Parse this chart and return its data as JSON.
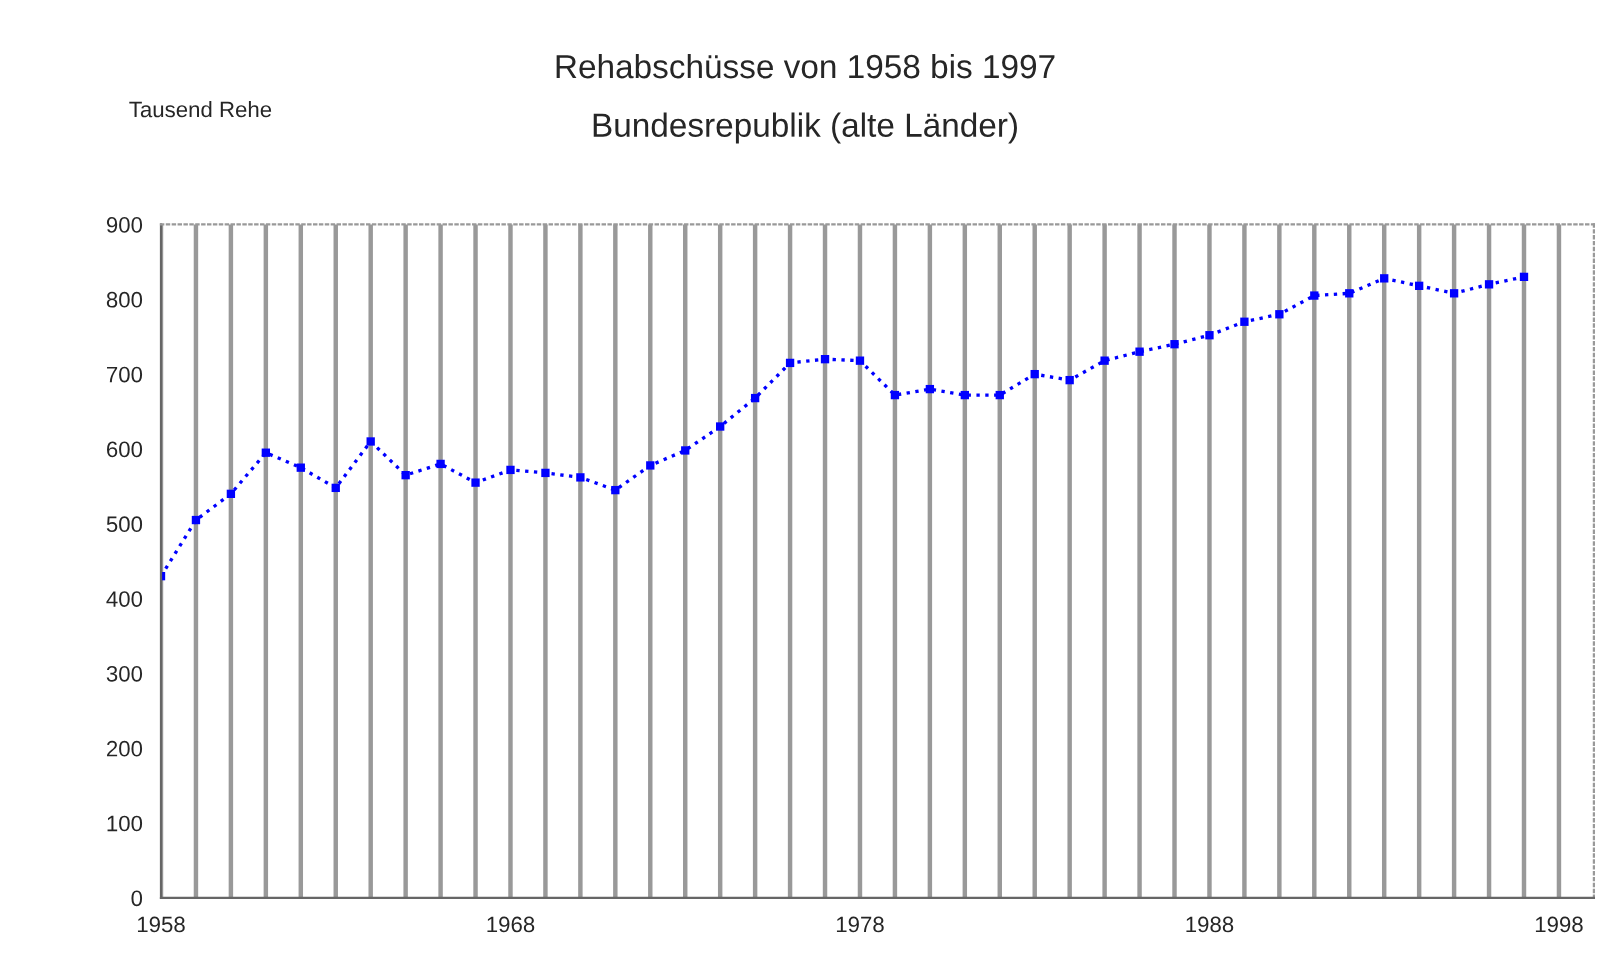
{
  "chart_data": {
    "type": "line",
    "title": "Rehabschüsse von 1958 bis 1997",
    "subtitle": "Bundesrepublik (alte Länder)",
    "ylabel": "Tausend Rehe",
    "x": [
      1958,
      1959,
      1960,
      1961,
      1962,
      1963,
      1964,
      1965,
      1966,
      1967,
      1968,
      1969,
      1970,
      1971,
      1972,
      1973,
      1974,
      1975,
      1976,
      1977,
      1978,
      1979,
      1980,
      1981,
      1982,
      1983,
      1984,
      1985,
      1986,
      1987,
      1988,
      1989,
      1990,
      1991,
      1992,
      1993,
      1994,
      1995,
      1996,
      1997
    ],
    "series": [
      {
        "color": "#0000ff",
        "values": [
          430,
          505,
          540,
          595,
          575,
          548,
          610,
          565,
          580,
          555,
          572,
          568,
          562,
          545,
          578,
          598,
          630,
          668,
          715,
          720,
          718,
          672,
          680,
          672,
          672,
          700,
          692,
          718,
          730,
          740,
          752,
          770,
          780,
          805,
          808,
          828,
          818,
          808,
          820,
          830
        ]
      }
    ],
    "xlim": [
      1958,
      1999
    ],
    "xticks": [
      1958,
      {
        "value": 1959,
        "label": null
      },
      {
        "value": 1960,
        "label": null
      },
      {
        "value": 1961,
        "label": null
      },
      {
        "value": 1962,
        "label": null
      },
      {
        "value": 1963,
        "label": null
      },
      {
        "value": 1964,
        "label": null
      },
      {
        "value": 1965,
        "label": null
      },
      {
        "value": 1966,
        "label": null
      },
      {
        "value": 1967,
        "label": null
      },
      1968,
      {
        "value": 1969,
        "label": null
      },
      {
        "value": 1970,
        "label": null
      },
      {
        "value": 1971,
        "label": null
      },
      {
        "value": 1972,
        "label": null
      },
      {
        "value": 1973,
        "label": null
      },
      {
        "value": 1974,
        "label": null
      },
      {
        "value": 1975,
        "label": null
      },
      {
        "value": 1976,
        "label": null
      },
      {
        "value": 1977,
        "label": null
      },
      1978,
      {
        "value": 1979,
        "label": null
      },
      {
        "value": 1980,
        "label": null
      },
      {
        "value": 1981,
        "label": null
      },
      {
        "value": 1982,
        "label": null
      },
      {
        "value": 1983,
        "label": null
      },
      {
        "value": 1984,
        "label": null
      },
      {
        "value": 1985,
        "label": null
      },
      {
        "value": 1986,
        "label": null
      },
      {
        "value": 1987,
        "label": null
      },
      1988,
      {
        "value": 1989,
        "label": null
      },
      {
        "value": 1990,
        "label": null
      },
      {
        "value": 1991,
        "label": null
      },
      {
        "value": 1992,
        "label": null
      },
      {
        "value": 1993,
        "label": null
      },
      {
        "value": 1994,
        "label": null
      },
      {
        "value": 1995,
        "label": null
      },
      {
        "value": 1996,
        "label": null
      },
      {
        "value": 1997,
        "label": null
      },
      1998
    ],
    "ylim": [
      0,
      900
    ],
    "yticks": [
      0,
      100,
      200,
      300,
      400,
      500,
      600,
      700,
      800,
      900
    ],
    "grid": "x",
    "marker": "square",
    "line_style": "dotted"
  }
}
